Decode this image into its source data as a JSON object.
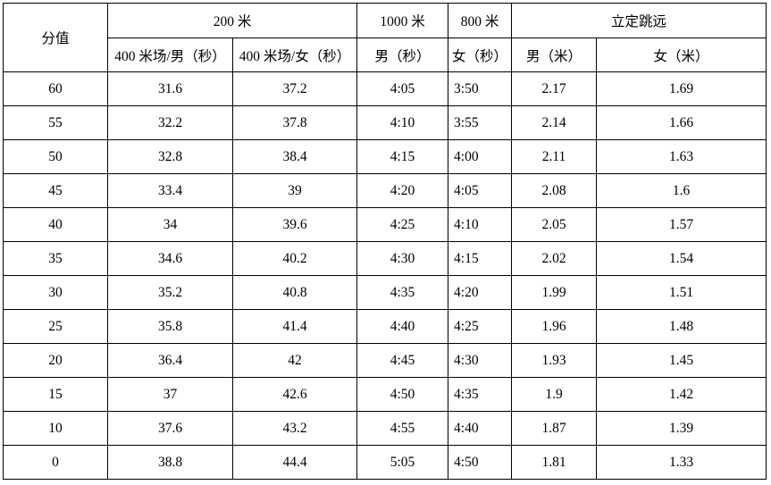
{
  "colors": {
    "background": "#ffffff",
    "border": "#000000",
    "text": "#000000"
  },
  "table": {
    "header": {
      "score": "分值",
      "group_200m": "200 米",
      "col_200m_male": "400 米场/男（秒）",
      "col_200m_female": "400 米场/女（秒）",
      "group_1000m": "1000 米",
      "col_1000m_male": "男（秒）",
      "group_800m": "800 米",
      "col_800m_female": "女（秒）",
      "group_jump": "立定跳远",
      "col_jump_male": "男（米）",
      "col_jump_female": "女（米）"
    },
    "rows": [
      {
        "cells": [
          "60",
          "31.6",
          "37.2",
          "4:05",
          "3:50",
          "2.17",
          "1.69"
        ]
      },
      {
        "cells": [
          "55",
          "32.2",
          "37.8",
          "4:10",
          "3:55",
          "2.14",
          "1.66"
        ]
      },
      {
        "cells": [
          "50",
          "32.8",
          "38.4",
          "4:15",
          "4:00",
          "2.11",
          "1.63"
        ]
      },
      {
        "cells": [
          "45",
          "33.4",
          "39",
          "4:20",
          "4:05",
          "2.08",
          "1.6"
        ]
      },
      {
        "cells": [
          "40",
          "34",
          "39.6",
          "4:25",
          "4:10",
          "2.05",
          "1.57"
        ]
      },
      {
        "cells": [
          "35",
          "34.6",
          "40.2",
          "4:30",
          "4:15",
          "2.02",
          "1.54"
        ]
      },
      {
        "cells": [
          "30",
          "35.2",
          "40.8",
          "4:35",
          "4:20",
          "1.99",
          "1.51"
        ]
      },
      {
        "cells": [
          "25",
          "35.8",
          "41.4",
          "4:40",
          "4:25",
          "1.96",
          "1.48"
        ]
      },
      {
        "cells": [
          "20",
          "36.4",
          "42",
          "4:45",
          "4:30",
          "1.93",
          "1.45"
        ]
      },
      {
        "cells": [
          "15",
          "37",
          "42.6",
          "4:50",
          "4:35",
          "1.9",
          "1.42"
        ]
      },
      {
        "cells": [
          "10",
          "37.6",
          "43.2",
          "4:55",
          "4:40",
          "1.87",
          "1.39"
        ]
      },
      {
        "cells": [
          "0",
          "38.8",
          "44.4",
          "5:05",
          "4:50",
          "1.81",
          "1.33"
        ]
      }
    ]
  }
}
